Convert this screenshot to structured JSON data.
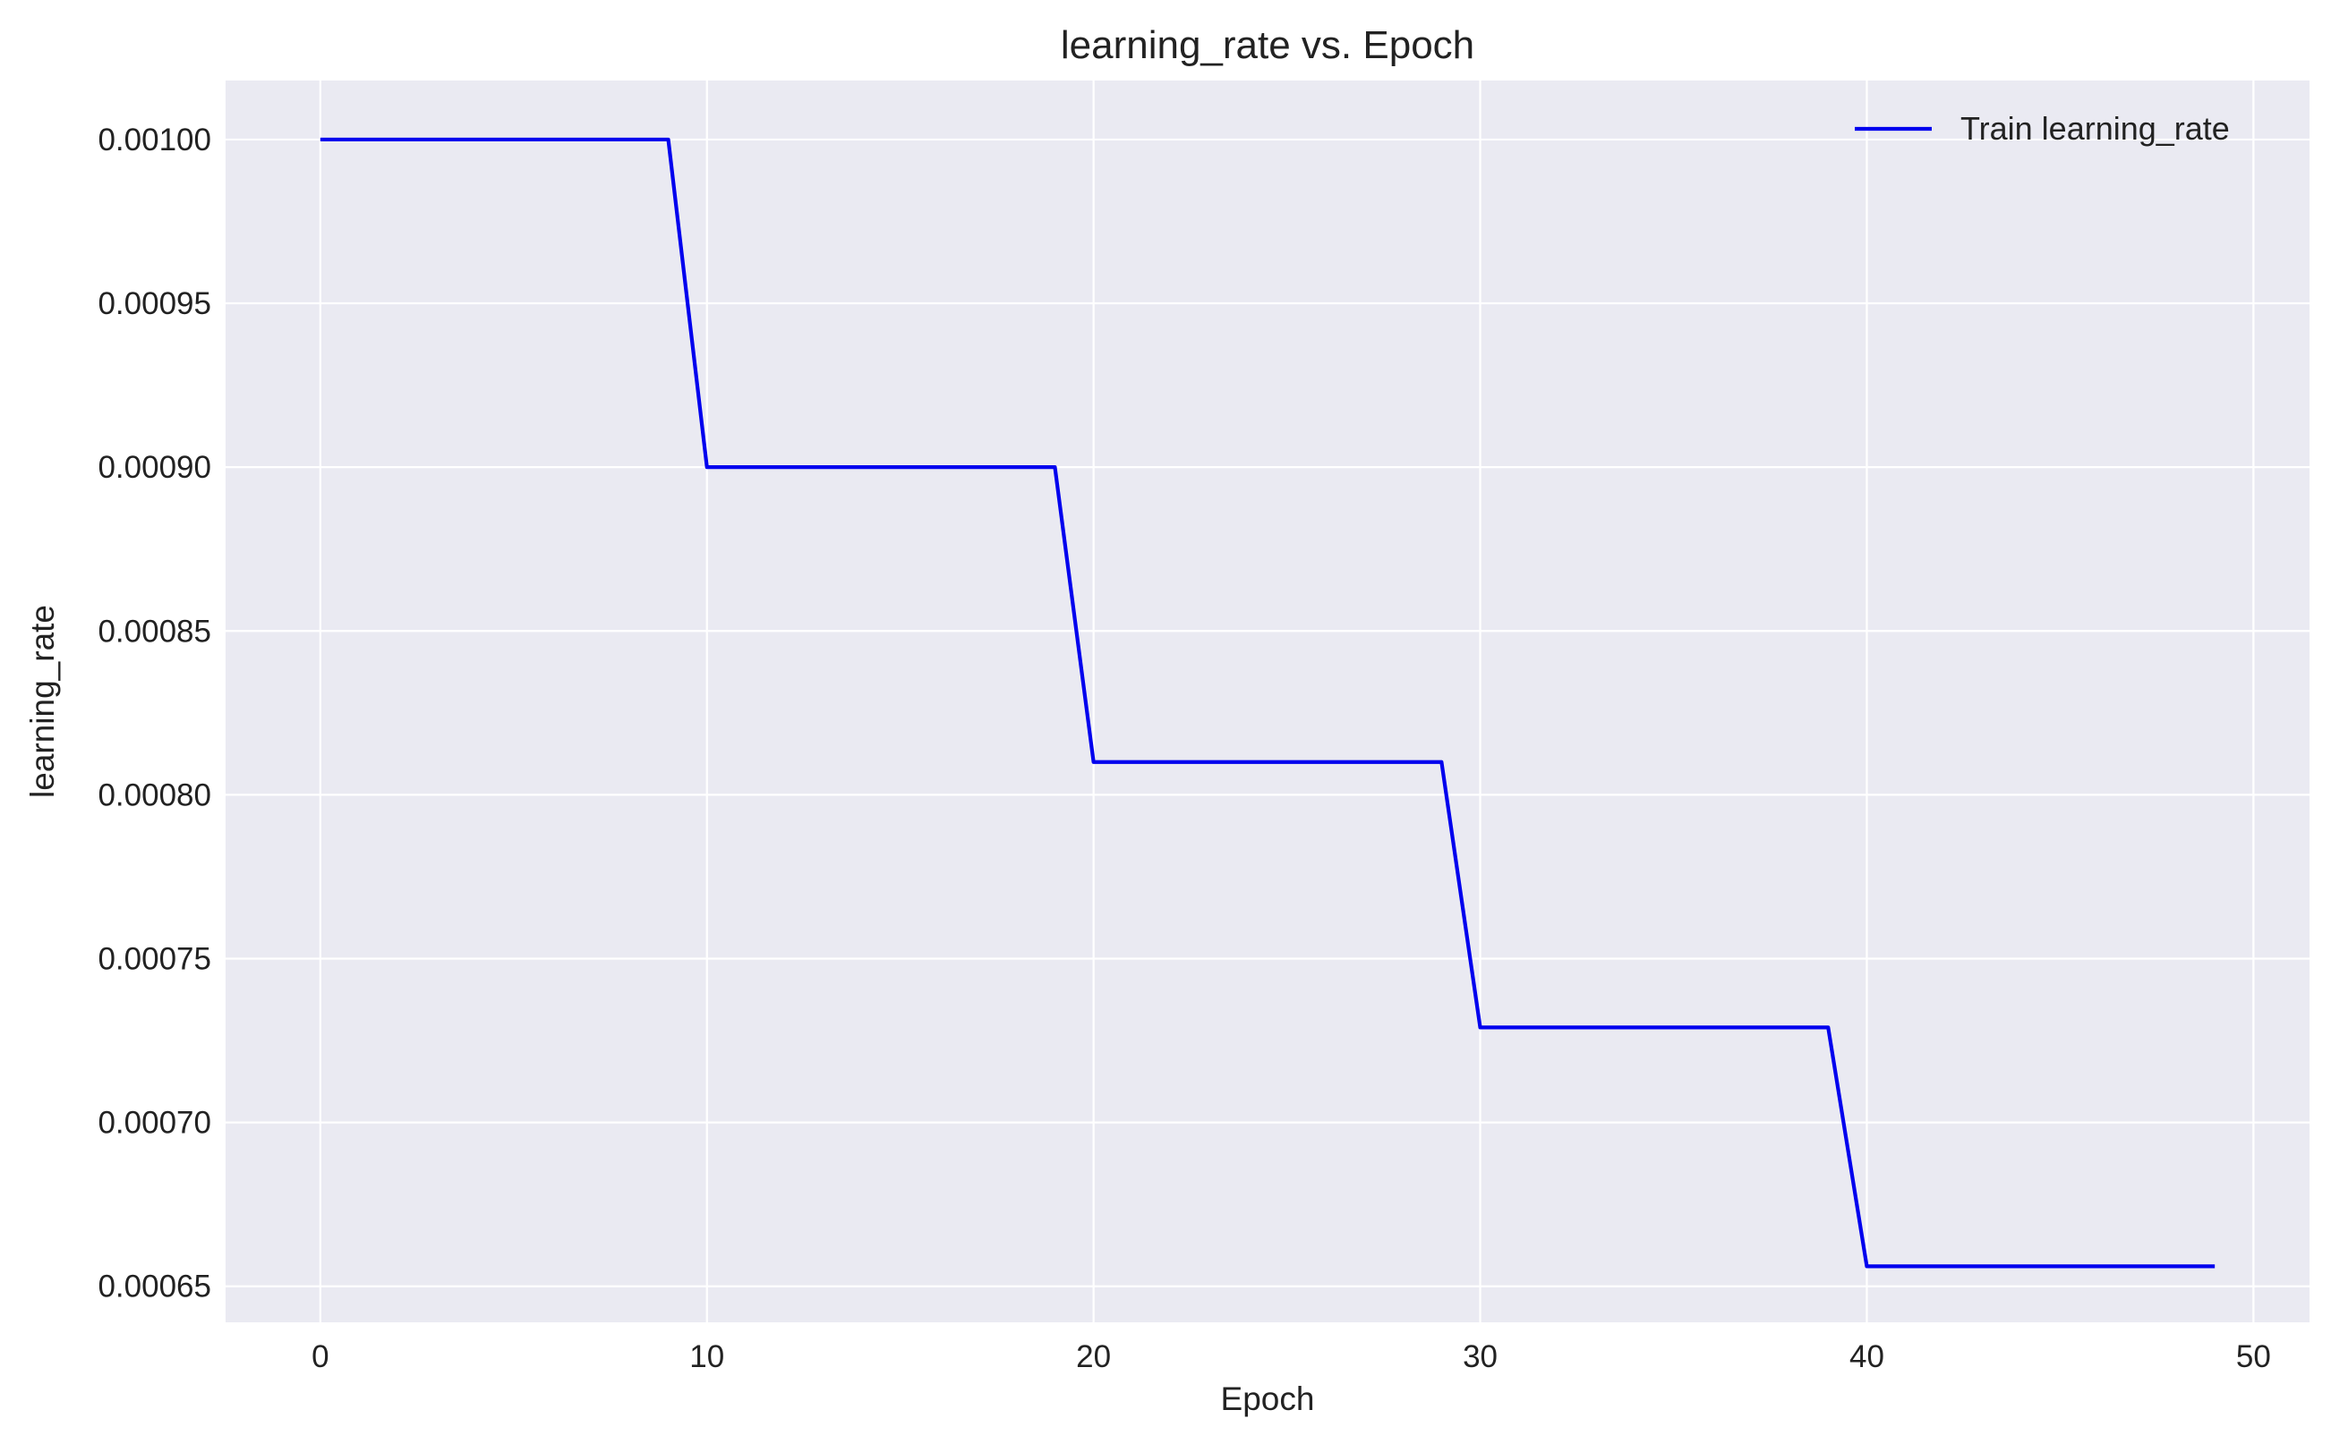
{
  "chart_data": {
    "type": "line",
    "title": "learning_rate vs. Epoch",
    "xlabel": "Epoch",
    "ylabel": "learning_rate",
    "xlim": [
      -2.45,
      51.45
    ],
    "ylim": [
      0.000639,
      0.001018
    ],
    "xticks": [
      0,
      10,
      20,
      30,
      40,
      50
    ],
    "xtick_labels": [
      "0",
      "10",
      "20",
      "30",
      "40",
      "50"
    ],
    "yticks": [
      0.00065,
      0.0007,
      0.00075,
      0.0008,
      0.00085,
      0.0009,
      0.00095,
      0.001
    ],
    "ytick_labels": [
      "0.00065",
      "0.00070",
      "0.00075",
      "0.00080",
      "0.00085",
      "0.00090",
      "0.00095",
      "0.00100"
    ],
    "grid": true,
    "legend_position": "top-right",
    "background_color": "#eaeaf2",
    "series": [
      {
        "name": "Train learning_rate",
        "color": "#0000ee",
        "x": [
          0,
          1,
          2,
          3,
          4,
          5,
          6,
          7,
          8,
          9,
          10,
          11,
          12,
          13,
          14,
          15,
          16,
          17,
          18,
          19,
          20,
          21,
          22,
          23,
          24,
          25,
          26,
          27,
          28,
          29,
          30,
          31,
          32,
          33,
          34,
          35,
          36,
          37,
          38,
          39,
          40,
          41,
          42,
          43,
          44,
          45,
          46,
          47,
          48,
          49
        ],
        "y": [
          0.001,
          0.001,
          0.001,
          0.001,
          0.001,
          0.001,
          0.001,
          0.001,
          0.001,
          0.001,
          0.0009,
          0.0009,
          0.0009,
          0.0009,
          0.0009,
          0.0009,
          0.0009,
          0.0009,
          0.0009,
          0.0009,
          0.00081,
          0.00081,
          0.00081,
          0.00081,
          0.00081,
          0.00081,
          0.00081,
          0.00081,
          0.00081,
          0.00081,
          0.000729,
          0.000729,
          0.000729,
          0.000729,
          0.000729,
          0.000729,
          0.000729,
          0.000729,
          0.000729,
          0.000729,
          0.0006561,
          0.0006561,
          0.0006561,
          0.0006561,
          0.0006561,
          0.0006561,
          0.0006561,
          0.0006561,
          0.0006561,
          0.0006561
        ]
      }
    ]
  }
}
